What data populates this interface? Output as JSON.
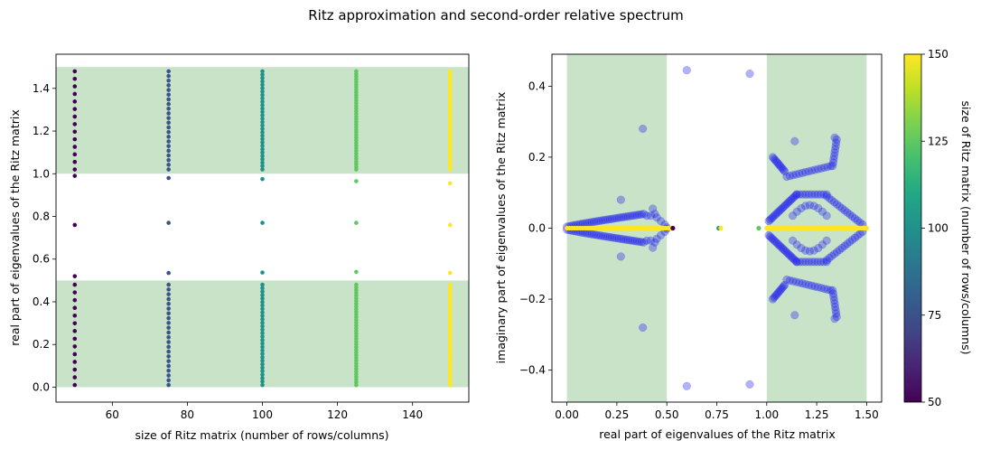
{
  "figure": {
    "title": "Ritz approximation and second-order relative spectrum"
  },
  "colors": {
    "band": "#c9e3c9",
    "ritz_complex": "#2222ee",
    "viridis": [
      "#440154",
      "#482475",
      "#414487",
      "#355f8d",
      "#2a788e",
      "#21918c",
      "#22a884",
      "#44bf70",
      "#7ad151",
      "#bddf26",
      "#fde725"
    ]
  },
  "chart_data": [
    {
      "type": "scatter",
      "name": "left-panel",
      "xlabel": "size of Ritz matrix (number of rows/columns)",
      "ylabel": "real part of eigenvalues of the Ritz matrix",
      "xlim": [
        45,
        155
      ],
      "ylim": [
        -0.07,
        1.56
      ],
      "xticks": [
        60,
        80,
        100,
        120,
        140
      ],
      "yticks": [
        0.0,
        0.2,
        0.4,
        0.6,
        0.8,
        1.0,
        1.2,
        1.4
      ],
      "grid": false,
      "shaded_bands_y": [
        [
          0.0,
          0.5
        ],
        [
          1.0,
          1.5
        ]
      ],
      "sizes": [
        50,
        75,
        100,
        125,
        150
      ],
      "isolated_points": [
        {
          "n": 50,
          "values": [
            0.52,
            0.76,
            0.99
          ]
        },
        {
          "n": 75,
          "values": [
            0.535,
            0.77,
            0.98
          ]
        },
        {
          "n": 100,
          "values": [
            0.537,
            0.77,
            0.975
          ]
        },
        {
          "n": 125,
          "values": [
            0.54,
            0.77,
            0.965
          ]
        },
        {
          "n": 150,
          "values": [
            0.535,
            0.76,
            0.955
          ]
        }
      ],
      "dense_ranges": [
        [
          0.01,
          0.48
        ],
        [
          1.02,
          1.48
        ]
      ]
    },
    {
      "type": "scatter",
      "name": "right-panel",
      "xlabel": "real part of eigenvalues of the Ritz matrix",
      "ylabel": "imaginary part of eigenvalues of the Ritz matrix",
      "xlim": [
        -0.075,
        1.575
      ],
      "ylim": [
        -0.49,
        0.49
      ],
      "xticks": [
        "0.00",
        "0.25",
        "0.50",
        "0.75",
        "1.00",
        "1.25",
        "1.50"
      ],
      "yticks": [
        "-0.4",
        "-0.2",
        "0.0",
        "0.2",
        "0.4"
      ],
      "grid": false,
      "shaded_bands_x": [
        [
          0.0,
          0.5
        ],
        [
          1.0,
          1.5
        ]
      ],
      "complex_series": {
        "description_points": [
          [
            0.6,
            0.445
          ],
          [
            0.6,
            -0.445
          ],
          [
            0.915,
            0.435
          ],
          [
            0.915,
            -0.44
          ],
          [
            0.38,
            0.28
          ],
          [
            0.38,
            -0.28
          ],
          [
            0.27,
            0.08
          ],
          [
            0.27,
            -0.08
          ],
          [
            1.14,
            0.245
          ],
          [
            1.14,
            -0.245
          ],
          [
            1.34,
            0.255
          ],
          [
            1.34,
            -0.255
          ]
        ]
      },
      "real_axis_series": {
        "values_at_imag": 0.0,
        "x_range": [
          [
            0.0,
            0.52
          ],
          [
            1.0,
            1.5
          ]
        ],
        "isolated_x": [
          0.53,
          0.76,
          0.77,
          0.96
        ]
      }
    }
  ],
  "colorbar": {
    "label": "size of Ritz matrix (number of rows/columns)",
    "range": [
      50,
      150
    ],
    "ticks": [
      50,
      75,
      100,
      125,
      150
    ]
  }
}
